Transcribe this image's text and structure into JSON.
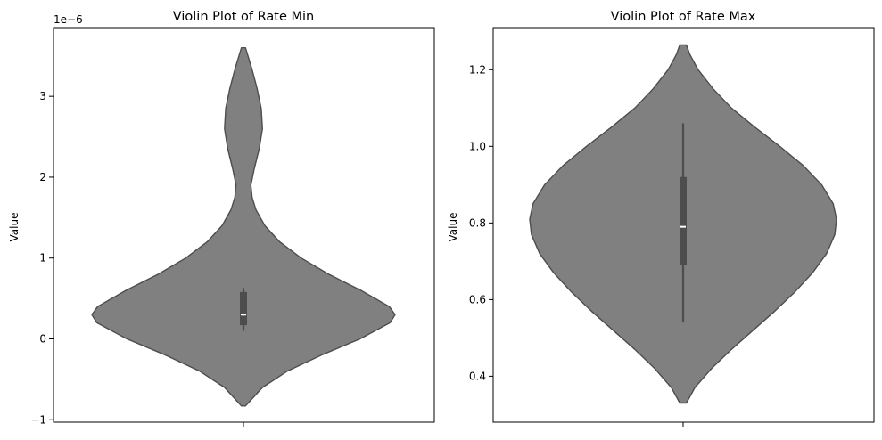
{
  "chart_data": [
    {
      "type": "violin",
      "title": "Violin Plot of Rate Min",
      "ylabel": "Value",
      "xlabel": "",
      "offset_text": "1e−6",
      "ylim": [
        -1.03,
        3.85
      ],
      "yticks": [
        -1,
        0,
        1,
        2,
        3
      ],
      "ytick_labels": [
        "−1",
        "0",
        "1",
        "2",
        "3"
      ],
      "grid": false,
      "color": "#808080",
      "edge_color": "#4d4d4d",
      "density": [
        [
          -0.83,
          0.05
        ],
        [
          -0.6,
          0.46
        ],
        [
          -0.4,
          1.06
        ],
        [
          -0.2,
          1.89
        ],
        [
          0.0,
          2.83
        ],
        [
          0.2,
          3.56
        ],
        [
          0.3,
          3.68
        ],
        [
          0.4,
          3.54
        ],
        [
          0.6,
          2.85
        ],
        [
          0.8,
          2.07
        ],
        [
          1.0,
          1.4
        ],
        [
          1.2,
          0.88
        ],
        [
          1.4,
          0.52
        ],
        [
          1.6,
          0.3
        ],
        [
          1.75,
          0.21
        ],
        [
          1.9,
          0.18
        ],
        [
          2.1,
          0.26
        ],
        [
          2.35,
          0.38
        ],
        [
          2.6,
          0.46
        ],
        [
          2.85,
          0.43
        ],
        [
          3.1,
          0.33
        ],
        [
          3.35,
          0.2
        ],
        [
          3.6,
          0.05
        ]
      ],
      "box": {
        "whisker_low": 0.1,
        "q1": 0.17,
        "median": 0.3,
        "q3": 0.58,
        "whisker_high": 0.63
      }
    },
    {
      "type": "violin",
      "title": "Violin Plot of Rate Max",
      "ylabel": "Value",
      "xlabel": "",
      "offset_text": "",
      "ylim": [
        0.28,
        1.31
      ],
      "yticks": [
        0.4,
        0.6,
        0.8,
        1.0,
        1.2
      ],
      "ytick_labels": [
        "0.4",
        "0.6",
        "0.8",
        "1.0",
        "1.2"
      ],
      "grid": false,
      "color": "#808080",
      "edge_color": "#4d4d4d",
      "density": [
        [
          0.33,
          0.1
        ],
        [
          0.37,
          0.35
        ],
        [
          0.42,
          0.85
        ],
        [
          0.47,
          1.45
        ],
        [
          0.52,
          2.1
        ],
        [
          0.57,
          2.75
        ],
        [
          0.62,
          3.35
        ],
        [
          0.67,
          3.88
        ],
        [
          0.72,
          4.3
        ],
        [
          0.77,
          4.55
        ],
        [
          0.81,
          4.6
        ],
        [
          0.85,
          4.5
        ],
        [
          0.9,
          4.15
        ],
        [
          0.95,
          3.6
        ],
        [
          1.0,
          2.9
        ],
        [
          1.05,
          2.15
        ],
        [
          1.1,
          1.45
        ],
        [
          1.15,
          0.9
        ],
        [
          1.2,
          0.45
        ],
        [
          1.24,
          0.2
        ],
        [
          1.265,
          0.1
        ]
      ],
      "box": {
        "whisker_low": 0.54,
        "q1": 0.69,
        "median": 0.79,
        "q3": 0.92,
        "whisker_high": 1.06
      }
    }
  ]
}
